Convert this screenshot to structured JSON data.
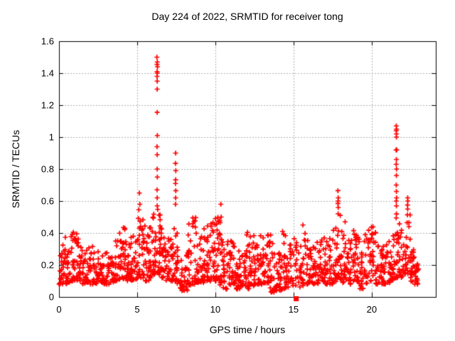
{
  "chart_data": {
    "type": "scatter",
    "title": "Day 224 of 2022, SRMTID for receiver tong",
    "xlabel": "GPS time / hours",
    "ylabel": "SRMTID / TECUs",
    "xlim": [
      0,
      24.1
    ],
    "ylim": [
      0,
      1.6
    ],
    "xticks": [
      0,
      5,
      10,
      15,
      20
    ],
    "xtick_labels": [
      "0",
      "5",
      "10",
      "15",
      "20"
    ],
    "yticks": [
      0,
      0.2,
      0.4,
      0.6,
      0.8,
      1,
      1.2,
      1.4,
      1.6
    ],
    "ytick_labels": [
      "0",
      "0.2",
      "0.4",
      "0.6",
      "0.8",
      "1",
      "1.2",
      "1.4",
      "1.6"
    ],
    "grid": "dashed",
    "legend": "none",
    "marker": {
      "shape": "plus",
      "size": 7,
      "color": "#ff0000"
    },
    "gap_marker": {
      "x": 15.17,
      "y": 0,
      "shape": "filled-square",
      "size": 7,
      "color": "#ff0000"
    },
    "colors": {
      "marker": "#ff0000",
      "grid": "#b0b0b0",
      "axis": "#000000",
      "text": "#000000",
      "background": "#ffffff"
    },
    "band_bins": {
      "bin_width": 0.25,
      "columns": [
        [
          0.0,
          0.08,
          0.28,
          16
        ],
        [
          0.25,
          0.08,
          0.38,
          16
        ],
        [
          0.5,
          0.09,
          0.3,
          16
        ],
        [
          0.75,
          0.1,
          0.42,
          18
        ],
        [
          1.0,
          0.1,
          0.42,
          18
        ],
        [
          1.25,
          0.1,
          0.32,
          16
        ],
        [
          1.5,
          0.08,
          0.3,
          16
        ],
        [
          1.75,
          0.09,
          0.35,
          16
        ],
        [
          2.0,
          0.08,
          0.34,
          15
        ],
        [
          2.25,
          0.08,
          0.25,
          13
        ],
        [
          2.5,
          0.09,
          0.3,
          15
        ],
        [
          2.75,
          0.08,
          0.28,
          15
        ],
        [
          3.0,
          0.08,
          0.3,
          16
        ],
        [
          3.25,
          0.09,
          0.32,
          16
        ],
        [
          3.5,
          0.1,
          0.35,
          16
        ],
        [
          3.75,
          0.11,
          0.44,
          18
        ],
        [
          4.0,
          0.11,
          0.44,
          18
        ],
        [
          4.25,
          0.1,
          0.35,
          16
        ],
        [
          4.5,
          0.1,
          0.38,
          16
        ],
        [
          4.75,
          0.11,
          0.4,
          16
        ],
        [
          5.0,
          0.12,
          0.55,
          18
        ],
        [
          5.25,
          0.12,
          0.52,
          18
        ],
        [
          5.5,
          0.1,
          0.4,
          16
        ],
        [
          5.75,
          0.12,
          0.46,
          17
        ],
        [
          6.0,
          0.14,
          0.55,
          20
        ],
        [
          6.25,
          0.14,
          0.55,
          22
        ],
        [
          6.5,
          0.12,
          0.5,
          18
        ],
        [
          6.75,
          0.1,
          0.4,
          16
        ],
        [
          7.0,
          0.1,
          0.36,
          16
        ],
        [
          7.25,
          0.1,
          0.46,
          16
        ],
        [
          7.5,
          0.08,
          0.4,
          16
        ],
        [
          7.75,
          0.04,
          0.25,
          16
        ],
        [
          8.0,
          0.04,
          0.3,
          16
        ],
        [
          8.25,
          0.07,
          0.46,
          16
        ],
        [
          8.5,
          0.08,
          0.5,
          16
        ],
        [
          8.75,
          0.09,
          0.4,
          16
        ],
        [
          9.0,
          0.09,
          0.47,
          18
        ],
        [
          9.25,
          0.1,
          0.44,
          18
        ],
        [
          9.5,
          0.1,
          0.46,
          18
        ],
        [
          9.75,
          0.1,
          0.47,
          18
        ],
        [
          10.0,
          0.09,
          0.5,
          18
        ],
        [
          10.25,
          0.07,
          0.55,
          18
        ],
        [
          10.5,
          0.05,
          0.35,
          16
        ],
        [
          10.75,
          0.07,
          0.35,
          16
        ],
        [
          11.0,
          0.08,
          0.38,
          16
        ],
        [
          11.25,
          0.05,
          0.35,
          16
        ],
        [
          11.5,
          0.05,
          0.3,
          16
        ],
        [
          11.75,
          0.07,
          0.35,
          16
        ],
        [
          12.0,
          0.05,
          0.42,
          18
        ],
        [
          12.25,
          0.07,
          0.42,
          18
        ],
        [
          12.5,
          0.08,
          0.35,
          16
        ],
        [
          12.75,
          0.08,
          0.4,
          16
        ],
        [
          13.0,
          0.08,
          0.44,
          18
        ],
        [
          13.25,
          0.08,
          0.4,
          16
        ],
        [
          13.5,
          0.03,
          0.42,
          16
        ],
        [
          13.75,
          0.03,
          0.28,
          16
        ],
        [
          14.0,
          0.04,
          0.3,
          16
        ],
        [
          14.25,
          0.05,
          0.41,
          16
        ],
        [
          14.5,
          0.05,
          0.3,
          14
        ],
        [
          14.75,
          0.07,
          0.34,
          14
        ],
        [
          15.0,
          0.07,
          0.38,
          12
        ],
        [
          15.25,
          0.05,
          0.35,
          12
        ],
        [
          15.5,
          0.07,
          0.45,
          14
        ],
        [
          15.75,
          0.08,
          0.38,
          14
        ],
        [
          16.0,
          0.08,
          0.3,
          16
        ],
        [
          16.25,
          0.08,
          0.32,
          16
        ],
        [
          16.5,
          0.08,
          0.35,
          16
        ],
        [
          16.75,
          0.09,
          0.38,
          16
        ],
        [
          17.0,
          0.08,
          0.35,
          16
        ],
        [
          17.25,
          0.08,
          0.4,
          16
        ],
        [
          17.5,
          0.09,
          0.45,
          16
        ],
        [
          17.75,
          0.11,
          0.52,
          18
        ],
        [
          18.0,
          0.09,
          0.48,
          16
        ],
        [
          18.25,
          0.1,
          0.45,
          16
        ],
        [
          18.5,
          0.08,
          0.38,
          16
        ],
        [
          18.75,
          0.1,
          0.45,
          16
        ],
        [
          19.0,
          0.08,
          0.4,
          16
        ],
        [
          19.25,
          0.05,
          0.35,
          16
        ],
        [
          19.5,
          0.08,
          0.4,
          14
        ],
        [
          19.75,
          0.1,
          0.47,
          16
        ],
        [
          20.0,
          0.1,
          0.45,
          16
        ],
        [
          20.25,
          0.08,
          0.35,
          16
        ],
        [
          20.5,
          0.08,
          0.32,
          16
        ],
        [
          20.75,
          0.08,
          0.35,
          16
        ],
        [
          21.0,
          0.09,
          0.35,
          16
        ],
        [
          21.25,
          0.1,
          0.4,
          16
        ],
        [
          21.5,
          0.12,
          0.52,
          18
        ],
        [
          21.75,
          0.12,
          0.5,
          16
        ],
        [
          22.0,
          0.14,
          0.45,
          16
        ],
        [
          22.25,
          0.12,
          0.55,
          16
        ],
        [
          22.5,
          0.09,
          0.3,
          18
        ],
        [
          22.75,
          0.08,
          0.25,
          18
        ]
      ]
    },
    "spike_points": [
      [
        5.14,
        0.65
      ],
      [
        5.17,
        0.58
      ],
      [
        6.26,
        1.5
      ],
      [
        6.29,
        1.47
      ],
      [
        6.27,
        1.455
      ],
      [
        6.3,
        1.44
      ],
      [
        6.27,
        1.41
      ],
      [
        6.29,
        1.4
      ],
      [
        6.27,
        1.38
      ],
      [
        6.28,
        1.35
      ],
      [
        6.28,
        1.3
      ],
      [
        6.28,
        1.155
      ],
      [
        6.29,
        1.01
      ],
      [
        6.27,
        0.94
      ],
      [
        6.28,
        0.89
      ],
      [
        6.28,
        0.8
      ],
      [
        6.29,
        0.75
      ],
      [
        6.27,
        0.67
      ],
      [
        6.28,
        0.62
      ],
      [
        6.28,
        0.57
      ],
      [
        7.46,
        0.9
      ],
      [
        7.45,
        0.836
      ],
      [
        7.47,
        0.79
      ],
      [
        7.46,
        0.733
      ],
      [
        7.45,
        0.71
      ],
      [
        7.47,
        0.665
      ],
      [
        7.46,
        0.62
      ],
      [
        7.45,
        0.58
      ],
      [
        10.35,
        0.58
      ],
      [
        10.37,
        0.5
      ],
      [
        14.3,
        0.41
      ],
      [
        15.6,
        0.45
      ],
      [
        17.84,
        0.665
      ],
      [
        17.86,
        0.62
      ],
      [
        17.85,
        0.6
      ],
      [
        17.84,
        0.585
      ],
      [
        17.86,
        0.56
      ],
      [
        17.85,
        0.52
      ],
      [
        18.3,
        0.47
      ],
      [
        21.57,
        1.07
      ],
      [
        21.59,
        1.05
      ],
      [
        21.57,
        1.04
      ],
      [
        21.58,
        1.02
      ],
      [
        21.58,
        1.0
      ],
      [
        21.56,
        0.92
      ],
      [
        21.6,
        0.92
      ],
      [
        21.58,
        0.86
      ],
      [
        21.57,
        0.83
      ],
      [
        21.59,
        0.8
      ],
      [
        21.58,
        0.76
      ],
      [
        21.57,
        0.7
      ],
      [
        21.58,
        0.66
      ],
      [
        21.59,
        0.62
      ],
      [
        21.57,
        0.6
      ],
      [
        21.58,
        0.57
      ],
      [
        22.3,
        0.62
      ],
      [
        22.31,
        0.6
      ],
      [
        22.29,
        0.575
      ],
      [
        22.3,
        0.55
      ]
    ]
  }
}
